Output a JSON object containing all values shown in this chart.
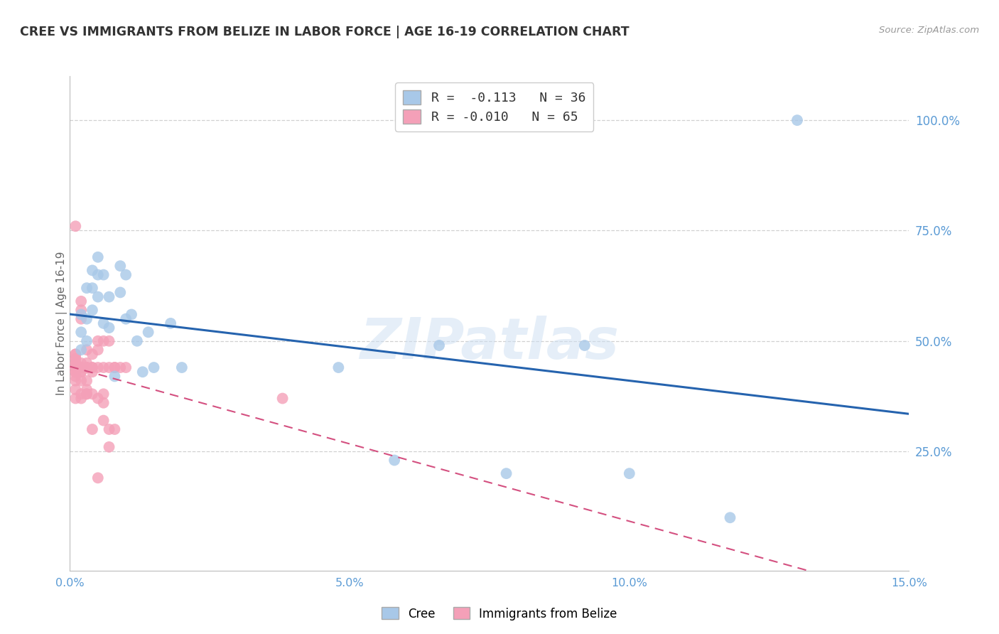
{
  "title": "CREE VS IMMIGRANTS FROM BELIZE IN LABOR FORCE | AGE 16-19 CORRELATION CHART",
  "source": "Source: ZipAtlas.com",
  "ylabel": "In Labor Force | Age 16-19",
  "xlim": [
    0.0,
    0.15
  ],
  "ylim": [
    -0.02,
    1.1
  ],
  "xticks": [
    0.0,
    0.05,
    0.1,
    0.15
  ],
  "xtick_labels": [
    "0.0%",
    "5.0%",
    "10.0%",
    "15.0%"
  ],
  "ytick_positions": [
    0.25,
    0.5,
    0.75,
    1.0
  ],
  "ytick_labels": [
    "25.0%",
    "50.0%",
    "75.0%",
    "100.0%"
  ],
  "cree_color": "#a8c8e8",
  "belize_color": "#f4a0b8",
  "watermark": "ZIPatlas",
  "cree_x": [
    0.002,
    0.002,
    0.002,
    0.003,
    0.003,
    0.003,
    0.004,
    0.004,
    0.004,
    0.005,
    0.005,
    0.005,
    0.006,
    0.006,
    0.007,
    0.007,
    0.008,
    0.009,
    0.009,
    0.01,
    0.01,
    0.011,
    0.012,
    0.013,
    0.014,
    0.015,
    0.018,
    0.02,
    0.048,
    0.058,
    0.066,
    0.078,
    0.092,
    0.1,
    0.118,
    0.13
  ],
  "cree_y": [
    0.48,
    0.52,
    0.56,
    0.5,
    0.55,
    0.62,
    0.57,
    0.62,
    0.66,
    0.6,
    0.65,
    0.69,
    0.54,
    0.65,
    0.53,
    0.6,
    0.42,
    0.61,
    0.67,
    0.55,
    0.65,
    0.56,
    0.5,
    0.43,
    0.52,
    0.44,
    0.54,
    0.44,
    0.44,
    0.23,
    0.49,
    0.2,
    0.49,
    0.2,
    0.1,
    1.0
  ],
  "belize_x": [
    0.001,
    0.001,
    0.001,
    0.001,
    0.001,
    0.001,
    0.001,
    0.001,
    0.001,
    0.001,
    0.001,
    0.001,
    0.001,
    0.001,
    0.001,
    0.001,
    0.001,
    0.001,
    0.002,
    0.002,
    0.002,
    0.002,
    0.002,
    0.002,
    0.002,
    0.002,
    0.002,
    0.002,
    0.002,
    0.002,
    0.003,
    0.003,
    0.003,
    0.003,
    0.003,
    0.003,
    0.003,
    0.003,
    0.003,
    0.004,
    0.004,
    0.004,
    0.004,
    0.004,
    0.004,
    0.005,
    0.005,
    0.005,
    0.005,
    0.005,
    0.006,
    0.006,
    0.006,
    0.006,
    0.006,
    0.007,
    0.007,
    0.007,
    0.007,
    0.008,
    0.008,
    0.008,
    0.009,
    0.01,
    0.038
  ],
  "belize_y": [
    0.37,
    0.39,
    0.41,
    0.42,
    0.43,
    0.43,
    0.44,
    0.44,
    0.44,
    0.44,
    0.44,
    0.45,
    0.45,
    0.46,
    0.46,
    0.47,
    0.47,
    0.76,
    0.37,
    0.38,
    0.41,
    0.43,
    0.43,
    0.44,
    0.44,
    0.44,
    0.45,
    0.55,
    0.57,
    0.59,
    0.38,
    0.38,
    0.39,
    0.41,
    0.44,
    0.44,
    0.44,
    0.45,
    0.48,
    0.3,
    0.38,
    0.43,
    0.44,
    0.44,
    0.47,
    0.19,
    0.37,
    0.44,
    0.48,
    0.5,
    0.32,
    0.36,
    0.38,
    0.44,
    0.5,
    0.26,
    0.3,
    0.44,
    0.5,
    0.3,
    0.44,
    0.44,
    0.44,
    0.44,
    0.37
  ],
  "background_color": "#ffffff",
  "grid_color": "#cccccc",
  "title_color": "#333333",
  "axis_label_color": "#5b9bd5",
  "right_yaxis_color": "#5b9bd5",
  "cree_line_color": "#2563ae",
  "belize_line_color": "#d45080"
}
